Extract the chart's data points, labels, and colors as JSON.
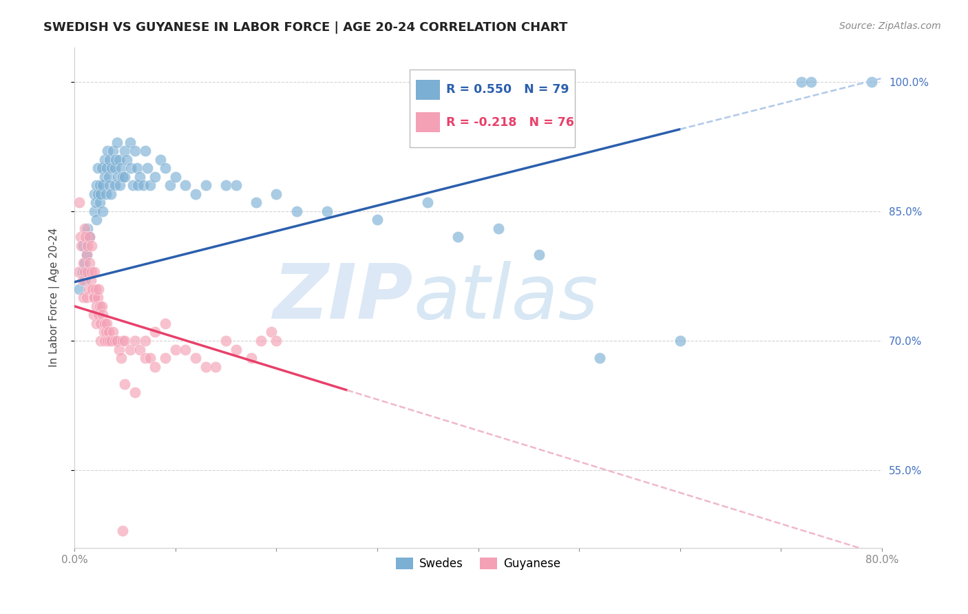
{
  "title": "SWEDISH VS GUYANESE IN LABOR FORCE | AGE 20-24 CORRELATION CHART",
  "source": "Source: ZipAtlas.com",
  "ylabel": "In Labor Force | Age 20-24",
  "xlim": [
    0.0,
    0.8
  ],
  "ylim": [
    0.46,
    1.04
  ],
  "xticks": [
    0.0,
    0.1,
    0.2,
    0.3,
    0.4,
    0.5,
    0.6,
    0.7,
    0.8
  ],
  "xticklabels": [
    "0.0%",
    "",
    "",
    "",
    "",
    "",
    "",
    "",
    "80.0%"
  ],
  "yticks": [
    0.55,
    0.7,
    0.85,
    1.0
  ],
  "yticklabels": [
    "55.0%",
    "70.0%",
    "85.0%",
    "100.0%"
  ],
  "right_ytick_color": "#4472c4",
  "grid_color": "#c8c8c8",
  "background_color": "#ffffff",
  "watermark_zip": "ZIP",
  "watermark_atlas": "atlas",
  "watermark_color": "#dce8f5",
  "legend_blue_r": "R = 0.550",
  "legend_blue_n": "N = 79",
  "legend_pink_r": "R = -0.218",
  "legend_pink_n": "N = 76",
  "blue_scatter_color": "#7bafd4",
  "pink_scatter_color": "#f4a0b5",
  "blue_line_color": "#2b5fad",
  "pink_line_color": "#e8406a",
  "blue_dashed_color": "#b0c8e8",
  "pink_dashed_color": "#f0b8c8",
  "blue_line_solid_end": 0.6,
  "pink_line_solid_end": 0.27,
  "swedes_x": [
    0.005,
    0.008,
    0.009,
    0.01,
    0.01,
    0.012,
    0.013,
    0.015,
    0.02,
    0.02,
    0.021,
    0.022,
    0.022,
    0.023,
    0.023,
    0.025,
    0.025,
    0.026,
    0.027,
    0.028,
    0.028,
    0.03,
    0.03,
    0.031,
    0.032,
    0.033,
    0.034,
    0.035,
    0.035,
    0.036,
    0.037,
    0.038,
    0.04,
    0.04,
    0.041,
    0.042,
    0.043,
    0.044,
    0.045,
    0.046,
    0.048,
    0.05,
    0.05,
    0.052,
    0.055,
    0.056,
    0.058,
    0.06,
    0.062,
    0.063,
    0.065,
    0.068,
    0.07,
    0.072,
    0.075,
    0.08,
    0.085,
    0.09,
    0.095,
    0.1,
    0.11,
    0.12,
    0.13,
    0.15,
    0.16,
    0.18,
    0.2,
    0.22,
    0.25,
    0.3,
    0.35,
    0.38,
    0.42,
    0.46,
    0.52,
    0.6,
    0.72,
    0.73,
    0.79
  ],
  "swedes_y": [
    0.76,
    0.78,
    0.81,
    0.79,
    0.77,
    0.8,
    0.83,
    0.82,
    0.85,
    0.87,
    0.86,
    0.84,
    0.88,
    0.87,
    0.9,
    0.88,
    0.86,
    0.87,
    0.9,
    0.88,
    0.85,
    0.91,
    0.89,
    0.87,
    0.9,
    0.92,
    0.89,
    0.91,
    0.88,
    0.87,
    0.9,
    0.92,
    0.9,
    0.88,
    0.91,
    0.93,
    0.89,
    0.91,
    0.88,
    0.9,
    0.89,
    0.92,
    0.89,
    0.91,
    0.93,
    0.9,
    0.88,
    0.92,
    0.9,
    0.88,
    0.89,
    0.88,
    0.92,
    0.9,
    0.88,
    0.89,
    0.91,
    0.9,
    0.88,
    0.89,
    0.88,
    0.87,
    0.88,
    0.88,
    0.88,
    0.86,
    0.87,
    0.85,
    0.85,
    0.84,
    0.86,
    0.82,
    0.83,
    0.8,
    0.68,
    0.7,
    1.0,
    1.0,
    1.0
  ],
  "guyanese_x": [
    0.004,
    0.005,
    0.006,
    0.007,
    0.008,
    0.009,
    0.009,
    0.01,
    0.01,
    0.011,
    0.012,
    0.012,
    0.013,
    0.013,
    0.014,
    0.015,
    0.015,
    0.016,
    0.017,
    0.017,
    0.018,
    0.019,
    0.019,
    0.02,
    0.02,
    0.021,
    0.022,
    0.022,
    0.023,
    0.024,
    0.024,
    0.025,
    0.026,
    0.026,
    0.027,
    0.028,
    0.029,
    0.03,
    0.03,
    0.031,
    0.032,
    0.033,
    0.034,
    0.035,
    0.037,
    0.038,
    0.04,
    0.042,
    0.044,
    0.046,
    0.048,
    0.05,
    0.055,
    0.06,
    0.065,
    0.07,
    0.075,
    0.08,
    0.09,
    0.1,
    0.11,
    0.12,
    0.13,
    0.14,
    0.15,
    0.16,
    0.175,
    0.185,
    0.195,
    0.2,
    0.07,
    0.08,
    0.09,
    0.05,
    0.06,
    0.048
  ],
  "guyanese_y": [
    0.78,
    0.86,
    0.82,
    0.81,
    0.77,
    0.79,
    0.75,
    0.83,
    0.78,
    0.82,
    0.8,
    0.75,
    0.81,
    0.78,
    0.76,
    0.82,
    0.79,
    0.77,
    0.81,
    0.78,
    0.76,
    0.75,
    0.73,
    0.78,
    0.75,
    0.76,
    0.74,
    0.72,
    0.75,
    0.76,
    0.73,
    0.74,
    0.72,
    0.7,
    0.74,
    0.73,
    0.71,
    0.72,
    0.7,
    0.71,
    0.72,
    0.7,
    0.71,
    0.7,
    0.7,
    0.71,
    0.7,
    0.7,
    0.69,
    0.68,
    0.7,
    0.7,
    0.69,
    0.7,
    0.69,
    0.68,
    0.68,
    0.67,
    0.68,
    0.69,
    0.69,
    0.68,
    0.67,
    0.67,
    0.7,
    0.69,
    0.68,
    0.7,
    0.71,
    0.7,
    0.7,
    0.71,
    0.72,
    0.65,
    0.64,
    0.48
  ]
}
